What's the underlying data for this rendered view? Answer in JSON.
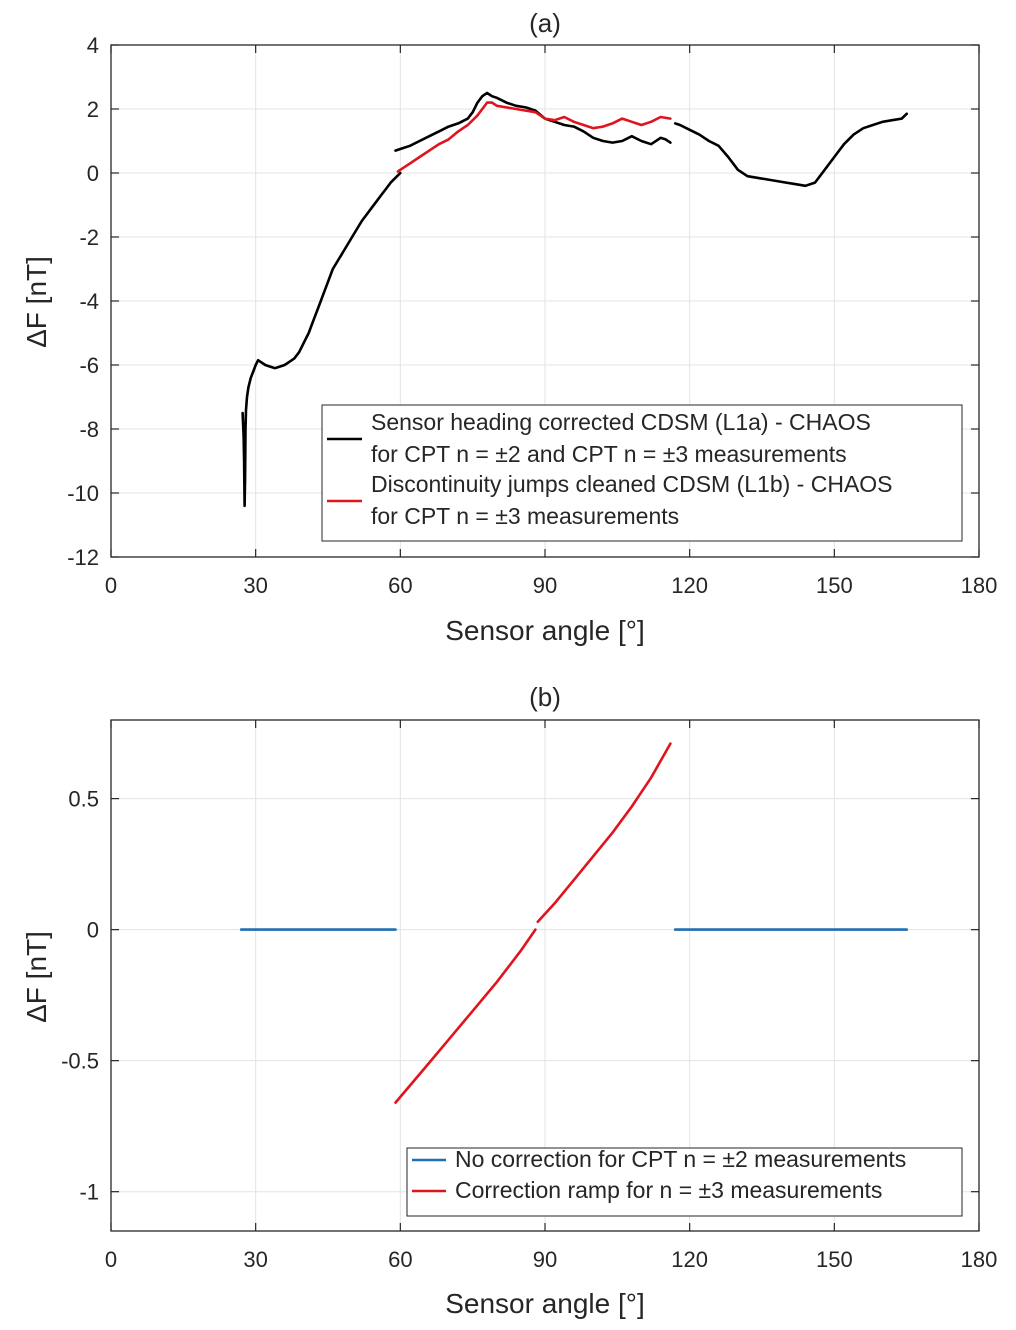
{
  "chart_data": [
    {
      "type": "line",
      "title": "(a)",
      "xlabel": "Sensor angle [°]",
      "ylabel": "ΔF [nT]",
      "xlim": [
        0,
        180
      ],
      "ylim": [
        -12,
        4
      ],
      "xticks": [
        0,
        30,
        60,
        90,
        120,
        150,
        180
      ],
      "yticks": [
        -12,
        -10,
        -8,
        -6,
        -4,
        -2,
        0,
        2,
        4
      ],
      "xtick_labels": [
        "0",
        "30",
        "60",
        "90",
        "120",
        "150",
        "180"
      ],
      "ytick_labels": [
        "-12",
        "-10",
        "-8",
        "-6",
        "-4",
        "-2",
        "0",
        "2",
        "4"
      ],
      "grid": true,
      "legend_position": "bottom-right",
      "legend": [
        {
          "line1": "Sensor heading corrected CDSM (L1a) - CHAOS",
          "line2": "for CPT n = ±2 and CPT n = ±3 measurements",
          "color": "#000000"
        },
        {
          "line1": "Discontinuity jumps cleaned CDSM (L1b) - CHAOS",
          "line2": "for CPT n = ±3 measurements",
          "color": "#e0141f"
        }
      ],
      "series": [
        {
          "name": "Sensor heading corrected CDSM (L1a) - CHAOS",
          "color": "#000000",
          "segments": [
            {
              "x": [
                27.3,
                27.5,
                27.6,
                27.7,
                27.8,
                27.9,
                28.0,
                28.2,
                28.5,
                29.0,
                29.5,
                30.0,
                30.5,
                31.0,
                32.0,
                33.0,
                34.0,
                35.0,
                36.0,
                37.0,
                38.0,
                39.0,
                40.0,
                41.0,
                42.0,
                43.0,
                44.0,
                45.0,
                46.0,
                48.0,
                50.0,
                52.0,
                54.0,
                56.0,
                57.0,
                58.0,
                59.0,
                60.0
              ],
              "y": [
                -7.5,
                -8.2,
                -9.0,
                -10.4,
                -9.5,
                -8.0,
                -7.4,
                -7.0,
                -6.7,
                -6.4,
                -6.2,
                -6.0,
                -5.85,
                -5.9,
                -6.0,
                -6.05,
                -6.1,
                -6.05,
                -6.0,
                -5.9,
                -5.8,
                -5.6,
                -5.3,
                -5.0,
                -4.6,
                -4.2,
                -3.8,
                -3.4,
                -3.0,
                -2.5,
                -2.0,
                -1.5,
                -1.1,
                -0.7,
                -0.5,
                -0.3,
                -0.15,
                0.0
              ]
            },
            {
              "x": [
                59.0,
                60.0,
                62.0,
                64.0,
                66.0,
                68.0,
                70.0,
                72.0,
                74.0,
                75.0,
                76.0,
                77.0,
                78.0,
                79.0,
                80.0,
                82.0,
                84.0,
                86.0,
                88.0,
                90.0,
                92.0,
                94.0,
                96.0,
                98.0,
                100.0,
                102.0,
                104.0,
                106.0,
                108.0,
                110.0,
                112.0,
                114.0,
                115.0,
                116.0
              ],
              "y": [
                0.7,
                0.75,
                0.85,
                1.0,
                1.15,
                1.3,
                1.45,
                1.55,
                1.7,
                1.9,
                2.2,
                2.4,
                2.5,
                2.4,
                2.35,
                2.2,
                2.1,
                2.05,
                1.95,
                1.7,
                1.6,
                1.5,
                1.45,
                1.3,
                1.1,
                1.0,
                0.95,
                1.0,
                1.15,
                1.0,
                0.9,
                1.1,
                1.05,
                0.95
              ]
            },
            {
              "x": [
                117.0,
                118.0,
                120.0,
                122.0,
                124.0,
                126.0,
                128.0,
                130.0,
                132.0,
                134.0,
                136.0,
                138.0,
                140.0,
                142.0,
                144.0,
                146.0,
                148.0,
                150.0,
                152.0,
                154.0,
                156.0,
                158.0,
                160.0,
                162.0,
                164.0,
                165.0
              ],
              "y": [
                1.55,
                1.5,
                1.35,
                1.2,
                1.0,
                0.85,
                0.5,
                0.1,
                -0.1,
                -0.15,
                -0.2,
                -0.25,
                -0.3,
                -0.35,
                -0.4,
                -0.3,
                0.1,
                0.5,
                0.9,
                1.2,
                1.4,
                1.5,
                1.6,
                1.65,
                1.7,
                1.85
              ]
            }
          ]
        },
        {
          "name": "Discontinuity jumps cleaned CDSM (L1b) - CHAOS",
          "color": "#e0141f",
          "segments": [
            {
              "x": [
                59.5,
                60.0,
                62.0,
                64.0,
                66.0,
                68.0,
                70.0,
                72.0,
                74.0,
                76.0,
                77.0,
                78.0,
                79.0,
                80.0,
                82.0,
                84.0,
                86.0,
                88.0,
                90.0,
                92.0,
                94.0,
                96.0,
                98.0,
                100.0,
                102.0,
                104.0,
                106.0,
                108.0,
                110.0,
                112.0,
                114.0,
                116.0
              ],
              "y": [
                0.05,
                0.1,
                0.3,
                0.5,
                0.7,
                0.9,
                1.05,
                1.3,
                1.5,
                1.8,
                2.0,
                2.2,
                2.2,
                2.1,
                2.05,
                2.0,
                1.95,
                1.9,
                1.7,
                1.65,
                1.75,
                1.6,
                1.5,
                1.4,
                1.45,
                1.55,
                1.7,
                1.6,
                1.5,
                1.6,
                1.75,
                1.7
              ]
            }
          ]
        }
      ]
    },
    {
      "type": "line",
      "title": "(b)",
      "xlabel": "Sensor angle [°]",
      "ylabel": "ΔF [nT]",
      "xlim": [
        0,
        180
      ],
      "ylim": [
        -1.15,
        0.8
      ],
      "xticks": [
        0,
        30,
        60,
        90,
        120,
        150,
        180
      ],
      "yticks": [
        -1,
        -0.5,
        0,
        0.5
      ],
      "xtick_labels": [
        "0",
        "30",
        "60",
        "90",
        "120",
        "150",
        "180"
      ],
      "ytick_labels": [
        "-1",
        "-0.5",
        "0",
        "0.5"
      ],
      "grid": true,
      "legend_position": "bottom-right",
      "legend": [
        {
          "line1": "No correction for CPT n = ±2 measurements",
          "color": "#1f6fb4"
        },
        {
          "line1": "Correction ramp for n = ±3 measurements",
          "color": "#e0141f"
        }
      ],
      "series": [
        {
          "name": "No correction for CPT n = ±2 measurements",
          "color": "#1f6fb4",
          "segments": [
            {
              "x": [
                27.0,
                59.0
              ],
              "y": [
                0,
                0
              ]
            },
            {
              "x": [
                117.0,
                165.0
              ],
              "y": [
                0,
                0
              ]
            }
          ]
        },
        {
          "name": "Correction ramp for n = ±3 measurements",
          "color": "#e0141f",
          "segments": [
            {
              "x": [
                59.0,
                65.0,
                70.0,
                75.0,
                80.0,
                85.0,
                88.0
              ],
              "y": [
                -0.66,
                -0.53,
                -0.42,
                -0.31,
                -0.2,
                -0.08,
                0.0
              ]
            },
            {
              "x": [
                88.5,
                92.0,
                96.0,
                100.0,
                104.0,
                108.0,
                112.0,
                116.0
              ],
              "y": [
                0.03,
                0.1,
                0.19,
                0.28,
                0.37,
                0.47,
                0.58,
                0.71
              ]
            }
          ]
        }
      ]
    }
  ]
}
